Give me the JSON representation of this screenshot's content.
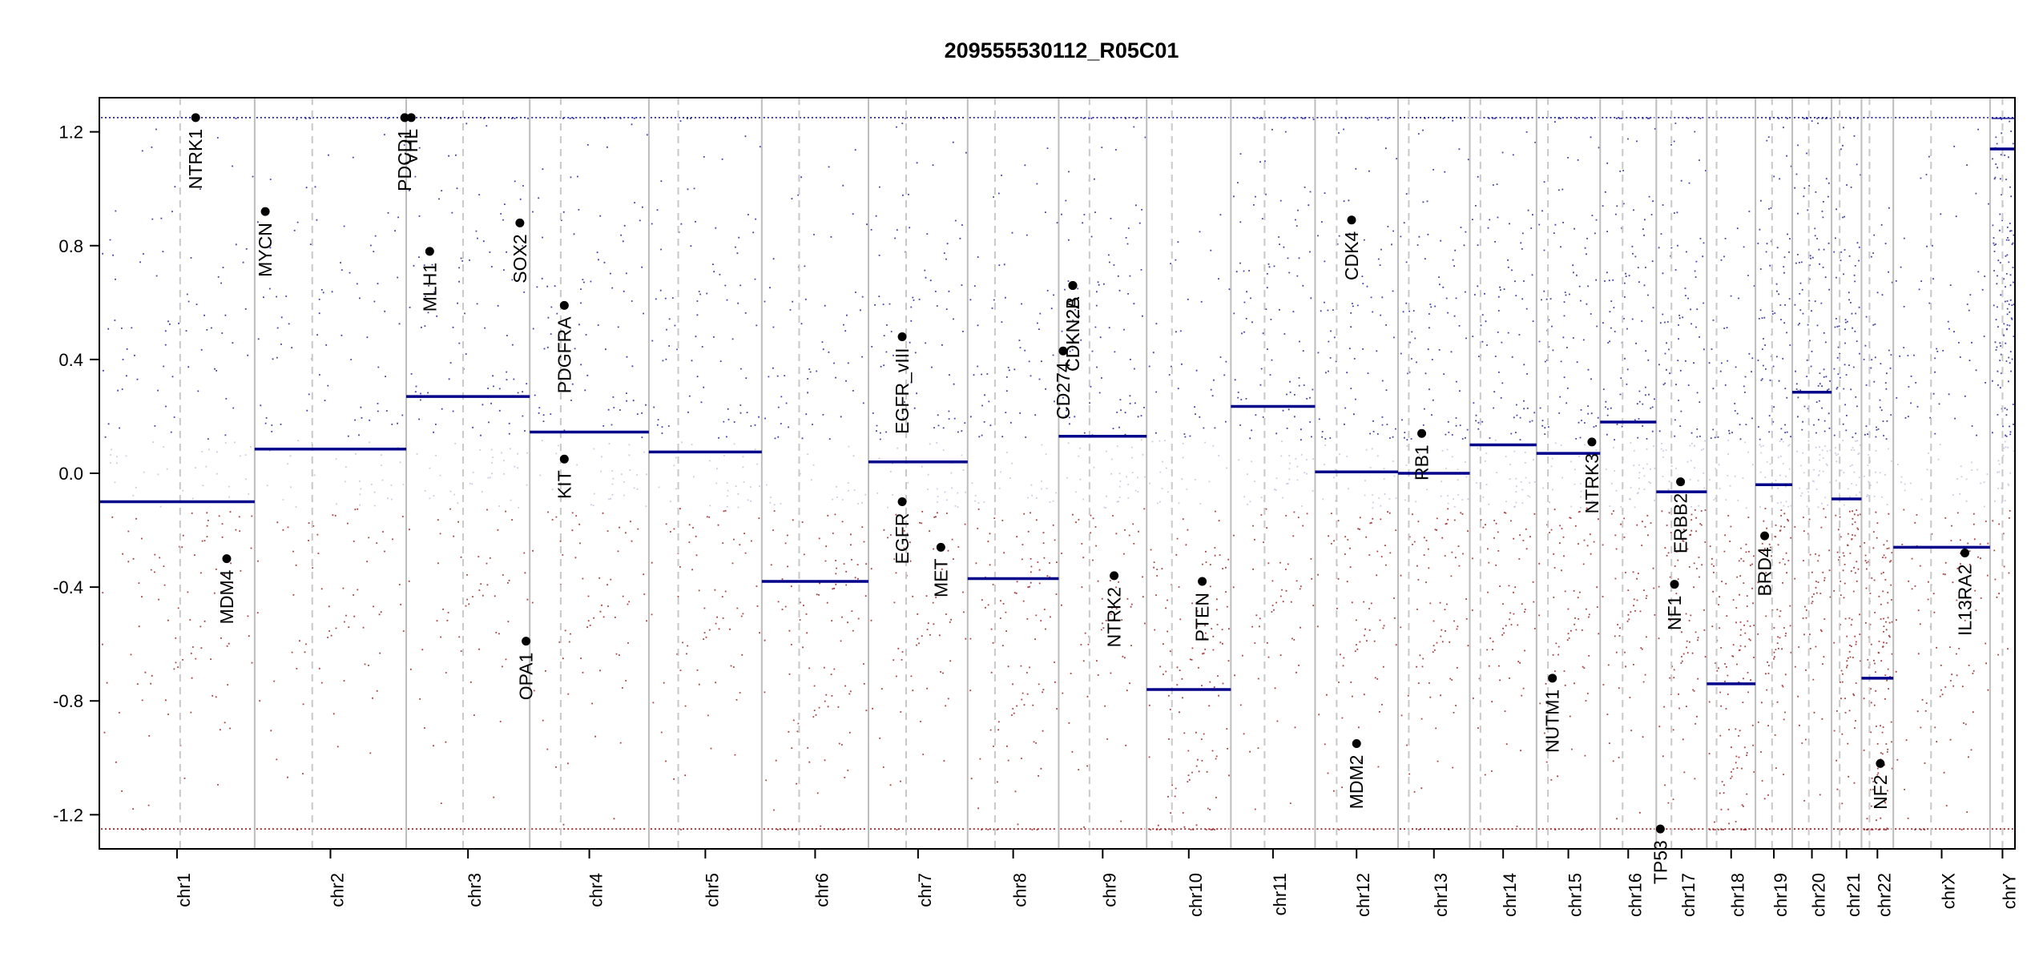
{
  "chart_data": {
    "type": "scatter",
    "title": "209555530112_R05C01",
    "xlabel": "",
    "ylabel": "",
    "ylim": [
      -1.32,
      1.32
    ],
    "y_ticks": [
      "-1.2",
      "-0.8",
      "-0.4",
      "0.0",
      "0.4",
      "0.8",
      "1.2"
    ],
    "y_tick_values": [
      -1.2,
      -0.8,
      -0.4,
      0.0,
      0.4,
      0.8,
      1.2
    ],
    "colors": {
      "gain": "#00008b",
      "loss": "#8b0000",
      "neutral": "#d9d9d9",
      "segment": "#00008b",
      "axis": "#000000",
      "boundary": "#bdbdbd"
    },
    "chromosomes": [
      {
        "name": "chr1",
        "length": 249,
        "centromere": 0.52,
        "segments": [
          {
            "start": 0,
            "end": 1,
            "value": -0.1
          }
        ]
      },
      {
        "name": "chr2",
        "length": 243,
        "centromere": 0.38,
        "segments": [
          {
            "start": 0,
            "end": 1,
            "value": 0.085
          }
        ]
      },
      {
        "name": "chr3",
        "length": 198,
        "centromere": 0.46,
        "segments": [
          {
            "start": 0,
            "end": 1,
            "value": 0.27
          }
        ]
      },
      {
        "name": "chr4",
        "length": 191,
        "centromere": 0.26,
        "segments": [
          {
            "start": 0,
            "end": 1,
            "value": 0.145
          }
        ]
      },
      {
        "name": "chr5",
        "length": 181,
        "centromere": 0.26,
        "segments": [
          {
            "start": 0,
            "end": 1,
            "value": 0.075
          }
        ]
      },
      {
        "name": "chr6",
        "length": 171,
        "centromere": 0.35,
        "segments": [
          {
            "start": 0,
            "end": 1,
            "value": -0.38
          }
        ]
      },
      {
        "name": "chr7",
        "length": 159,
        "centromere": 0.38,
        "segments": [
          {
            "start": 0,
            "end": 1,
            "value": 0.04
          }
        ]
      },
      {
        "name": "chr8",
        "length": 146,
        "centromere": 0.3,
        "segments": [
          {
            "start": 0,
            "end": 1,
            "value": -0.37
          }
        ]
      },
      {
        "name": "chr9",
        "length": 141,
        "centromere": 0.35,
        "segments": [
          {
            "start": 0,
            "end": 1,
            "value": 0.13
          }
        ]
      },
      {
        "name": "chr10",
        "length": 135,
        "centromere": 0.3,
        "segments": [
          {
            "start": 0,
            "end": 1,
            "value": -0.76
          }
        ]
      },
      {
        "name": "chr11",
        "length": 135,
        "centromere": 0.4,
        "segments": [
          {
            "start": 0,
            "end": 1,
            "value": 0.235
          }
        ]
      },
      {
        "name": "chr12",
        "length": 133,
        "centromere": 0.26,
        "segments": [
          {
            "start": 0,
            "end": 1,
            "value": 0.005
          }
        ]
      },
      {
        "name": "chr13",
        "length": 115,
        "centromere": 0.15,
        "segments": [
          {
            "start": 0,
            "end": 1,
            "value": 0.0
          }
        ]
      },
      {
        "name": "chr14",
        "length": 107,
        "centromere": 0.16,
        "segments": [
          {
            "start": 0,
            "end": 1,
            "value": 0.1
          }
        ]
      },
      {
        "name": "chr15",
        "length": 102,
        "centromere": 0.18,
        "segments": [
          {
            "start": 0,
            "end": 1,
            "value": 0.07
          }
        ]
      },
      {
        "name": "chr16",
        "length": 90,
        "centromere": 0.4,
        "segments": [
          {
            "start": 0,
            "end": 1,
            "value": 0.18
          }
        ]
      },
      {
        "name": "chr17",
        "length": 81,
        "centromere": 0.3,
        "segments": [
          {
            "start": 0,
            "end": 1,
            "value": -0.065
          }
        ]
      },
      {
        "name": "chr18",
        "length": 78,
        "centromere": 0.2,
        "segments": [
          {
            "start": 0,
            "end": 1,
            "value": -0.74
          }
        ]
      },
      {
        "name": "chr19",
        "length": 59,
        "centromere": 0.45,
        "segments": [
          {
            "start": 0,
            "end": 1,
            "value": -0.04
          }
        ]
      },
      {
        "name": "chr20",
        "length": 63,
        "centromere": 0.42,
        "segments": [
          {
            "start": 0,
            "end": 1,
            "value": 0.285
          }
        ]
      },
      {
        "name": "chr21",
        "length": 48,
        "centromere": 0.27,
        "segments": [
          {
            "start": 0,
            "end": 1,
            "value": -0.09
          }
        ]
      },
      {
        "name": "chr22",
        "length": 51,
        "centromere": 0.25,
        "segments": [
          {
            "start": 0,
            "end": 1,
            "value": -0.72
          }
        ]
      },
      {
        "name": "chrX",
        "length": 155,
        "centromere": 0.39,
        "segments": [
          {
            "start": 0,
            "end": 1,
            "value": -0.26
          }
        ]
      },
      {
        "name": "chrY",
        "length": 40,
        "centromere": 0.5,
        "segments": [
          {
            "start": 0,
            "end": 1,
            "value": 1.14
          }
        ]
      }
    ],
    "genes": [
      {
        "name": "NTRK1",
        "chr": "chr1",
        "pos": 0.62,
        "value": 1.25
      },
      {
        "name": "MDM4",
        "chr": "chr1",
        "pos": 0.82,
        "value": -0.3
      },
      {
        "name": "MYCN",
        "chr": "chr2",
        "pos": 0.07,
        "value": 0.92
      },
      {
        "name": "PDCD1",
        "chr": "chr2",
        "pos": 0.99,
        "value": 1.25
      },
      {
        "name": "VHL",
        "chr": "chr3",
        "pos": 0.04,
        "value": 1.25
      },
      {
        "name": "MLH1",
        "chr": "chr3",
        "pos": 0.19,
        "value": 0.78
      },
      {
        "name": "SOX2",
        "chr": "chr3",
        "pos": 0.92,
        "value": 0.88
      },
      {
        "name": "OPA1",
        "chr": "chr3",
        "pos": 0.97,
        "value": -0.59
      },
      {
        "name": "PDGFRA",
        "chr": "chr4",
        "pos": 0.29,
        "value": 0.59
      },
      {
        "name": "KIT",
        "chr": "chr4",
        "pos": 0.29,
        "value": 0.05
      },
      {
        "name": "EGFR_vIII",
        "chr": "chr7",
        "pos": 0.34,
        "value": 0.48
      },
      {
        "name": "EGFR",
        "chr": "chr7",
        "pos": 0.34,
        "value": -0.1
      },
      {
        "name": "MET",
        "chr": "chr7",
        "pos": 0.73,
        "value": -0.26
      },
      {
        "name": "CD274",
        "chr": "chr9",
        "pos": 0.05,
        "value": 0.43
      },
      {
        "name": "CDKN2A",
        "chr": "chr9",
        "pos": 0.16,
        "value": 0.66
      },
      {
        "name": "CDKN2B",
        "chr": "chr9",
        "pos": 0.16,
        "value": 0.66
      },
      {
        "name": "NTRK2",
        "chr": "chr9",
        "pos": 0.63,
        "value": -0.36
      },
      {
        "name": "PTEN",
        "chr": "chr10",
        "pos": 0.66,
        "value": -0.38
      },
      {
        "name": "CDK4",
        "chr": "chr12",
        "pos": 0.44,
        "value": 0.89
      },
      {
        "name": "MDM2",
        "chr": "chr12",
        "pos": 0.5,
        "value": -0.95
      },
      {
        "name": "RB1",
        "chr": "chr13",
        "pos": 0.33,
        "value": 0.14
      },
      {
        "name": "NUTM1",
        "chr": "chr15",
        "pos": 0.25,
        "value": -0.72
      },
      {
        "name": "NTRK3",
        "chr": "chr15",
        "pos": 0.87,
        "value": 0.11
      },
      {
        "name": "TP53",
        "chr": "chr17",
        "pos": 0.08,
        "value": -1.25
      },
      {
        "name": "NF1",
        "chr": "chr17",
        "pos": 0.36,
        "value": -0.39
      },
      {
        "name": "ERBB2",
        "chr": "chr17",
        "pos": 0.48,
        "value": -0.03
      },
      {
        "name": "BRD4",
        "chr": "chr19",
        "pos": 0.25,
        "value": -0.22
      },
      {
        "name": "NF2",
        "chr": "chr22",
        "pos": 0.59,
        "value": -1.02
      },
      {
        "name": "IL13RA2",
        "chr": "chrX",
        "pos": 0.74,
        "value": -0.28
      }
    ]
  }
}
